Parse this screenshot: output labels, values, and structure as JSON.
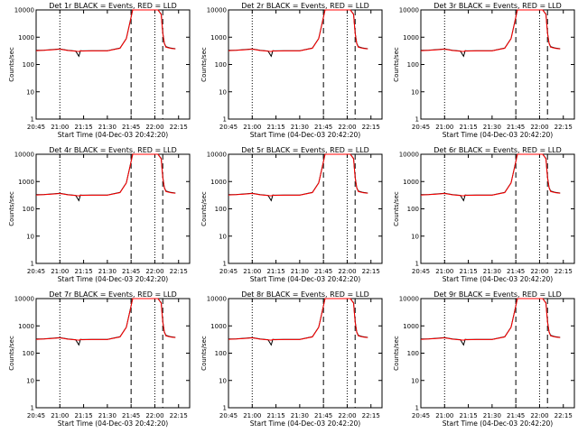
{
  "figure": {
    "background": "#ffffff",
    "colors": {
      "events": "#000000",
      "lld": "#ff0000"
    }
  },
  "chart_data": [
    {
      "type": "line",
      "title": "Det 1r BLACK = Events, RED = LLD",
      "xlabel": "Start Time (04-Dec-03 20:42:20)",
      "ylabel": "Counts/sec",
      "yscale": "log",
      "ylim": [
        1,
        10000
      ],
      "xlim": [
        "20:45",
        "22:22"
      ],
      "x_ticks": [
        "20:45",
        "21:00",
        "21:15",
        "21:30",
        "21:45",
        "22:00",
        "22:15"
      ],
      "y_ticks": [
        "1",
        "10",
        "100",
        "1000",
        "10000"
      ],
      "x": [
        "20:45",
        "20:50",
        "20:55",
        "21:00",
        "21:05",
        "21:10",
        "21:12",
        "21:13",
        "21:14",
        "21:20",
        "21:30",
        "21:38",
        "21:42",
        "21:44",
        "21:46",
        "21:48",
        "22:02",
        "22:04",
        "22:05",
        "22:06",
        "22:07",
        "22:10",
        "22:13"
      ],
      "series": [
        {
          "values": [
            330,
            335,
            350,
            370,
            330,
            310,
            200,
            320,
            315,
            320,
            320,
            400,
            900,
            3000,
            10000,
            10000,
            10000,
            7000,
            1500,
            600,
            450,
            400,
            380
          ]
        },
        {
          "values": [
            320,
            330,
            345,
            365,
            325,
            305,
            300,
            315,
            310,
            315,
            315,
            395,
            880,
            2900,
            10000,
            10000,
            10000,
            6800,
            1400,
            580,
            430,
            390,
            370
          ]
        }
      ],
      "markers": {
        "dotted": [
          "21:00",
          "22:00"
        ],
        "dashed": [
          "21:45",
          "22:05"
        ]
      }
    },
    {
      "type": "line",
      "title": "Det 2r BLACK = Events, RED = LLD",
      "xlabel": "Start Time (04-Dec-03 20:42:20)",
      "ylabel": "Counts/sec",
      "yscale": "log",
      "ylim": [
        1,
        10000
      ],
      "xlim": [
        "20:45",
        "22:22"
      ],
      "x_ticks": [
        "20:45",
        "21:00",
        "21:15",
        "21:30",
        "21:45",
        "22:00",
        "22:15"
      ],
      "y_ticks": [
        "1",
        "10",
        "100",
        "1000",
        "10000"
      ],
      "x": [
        "20:45",
        "20:50",
        "20:55",
        "21:00",
        "21:05",
        "21:10",
        "21:12",
        "21:13",
        "21:14",
        "21:20",
        "21:30",
        "21:38",
        "21:42",
        "21:44",
        "21:46",
        "21:48",
        "22:02",
        "22:04",
        "22:05",
        "22:06",
        "22:07",
        "22:10",
        "22:13"
      ],
      "series": [
        {
          "values": [
            330,
            335,
            350,
            370,
            330,
            310,
            200,
            320,
            315,
            320,
            320,
            400,
            900,
            3000,
            10000,
            10000,
            10000,
            7000,
            1500,
            600,
            450,
            400,
            380
          ]
        },
        {
          "values": [
            320,
            330,
            345,
            365,
            325,
            305,
            300,
            315,
            310,
            315,
            315,
            395,
            880,
            2900,
            10000,
            10000,
            10000,
            6800,
            1400,
            580,
            430,
            390,
            370
          ]
        }
      ],
      "markers": {
        "dotted": [
          "21:00",
          "22:00"
        ],
        "dashed": [
          "21:45",
          "22:05"
        ]
      }
    },
    {
      "type": "line",
      "title": "Det 3r BLACK = Events, RED = LLD",
      "xlabel": "Start Time (04-Dec-03 20:42:20)",
      "ylabel": "Counts/sec",
      "yscale": "log",
      "ylim": [
        1,
        10000
      ],
      "xlim": [
        "20:45",
        "22:22"
      ],
      "x_ticks": [
        "20:45",
        "21:00",
        "21:15",
        "21:30",
        "21:45",
        "22:00",
        "22:15"
      ],
      "y_ticks": [
        "1",
        "10",
        "100",
        "1000",
        "10000"
      ],
      "x": [
        "20:45",
        "20:50",
        "20:55",
        "21:00",
        "21:05",
        "21:10",
        "21:12",
        "21:13",
        "21:14",
        "21:20",
        "21:30",
        "21:38",
        "21:42",
        "21:44",
        "21:46",
        "21:48",
        "22:02",
        "22:04",
        "22:05",
        "22:06",
        "22:07",
        "22:10",
        "22:13"
      ],
      "series": [
        {
          "values": [
            330,
            335,
            350,
            370,
            330,
            310,
            200,
            320,
            315,
            320,
            320,
            400,
            900,
            3000,
            10000,
            10000,
            10000,
            7000,
            1500,
            600,
            450,
            400,
            380
          ]
        },
        {
          "values": [
            320,
            330,
            345,
            365,
            325,
            305,
            300,
            315,
            310,
            315,
            315,
            395,
            880,
            2900,
            10000,
            10000,
            10000,
            6800,
            1400,
            580,
            430,
            390,
            370
          ]
        }
      ],
      "markers": {
        "dotted": [
          "21:00",
          "22:00"
        ],
        "dashed": [
          "21:45",
          "22:05"
        ]
      }
    },
    {
      "type": "line",
      "title": "Det 4r BLACK = Events, RED = LLD",
      "xlabel": "Start Time (04-Dec-03 20:42:20)",
      "ylabel": "Counts/sec",
      "yscale": "log",
      "ylim": [
        1,
        10000
      ],
      "xlim": [
        "20:45",
        "22:22"
      ],
      "x_ticks": [
        "20:45",
        "21:00",
        "21:15",
        "21:30",
        "21:45",
        "22:00",
        "22:15"
      ],
      "y_ticks": [
        "1",
        "10",
        "100",
        "1000",
        "10000"
      ],
      "x": [
        "20:45",
        "20:50",
        "20:55",
        "21:00",
        "21:05",
        "21:10",
        "21:12",
        "21:13",
        "21:14",
        "21:20",
        "21:30",
        "21:38",
        "21:42",
        "21:44",
        "21:46",
        "21:48",
        "22:02",
        "22:04",
        "22:05",
        "22:06",
        "22:07",
        "22:10",
        "22:13"
      ],
      "series": [
        {
          "values": [
            330,
            335,
            350,
            370,
            330,
            310,
            200,
            320,
            315,
            320,
            320,
            400,
            900,
            3000,
            10000,
            10000,
            10000,
            7000,
            1500,
            600,
            450,
            400,
            380
          ]
        },
        {
          "values": [
            320,
            330,
            345,
            365,
            325,
            305,
            300,
            315,
            310,
            315,
            315,
            395,
            880,
            2900,
            10000,
            10000,
            10000,
            6800,
            1400,
            580,
            430,
            390,
            370
          ]
        }
      ],
      "markers": {
        "dotted": [
          "21:00",
          "22:00"
        ],
        "dashed": [
          "21:45",
          "22:05"
        ]
      }
    },
    {
      "type": "line",
      "title": "Det 5r BLACK = Events, RED = LLD",
      "xlabel": "Start Time (04-Dec-03 20:42:20)",
      "ylabel": "Counts/sec",
      "yscale": "log",
      "ylim": [
        1,
        10000
      ],
      "xlim": [
        "20:45",
        "22:22"
      ],
      "x_ticks": [
        "20:45",
        "21:00",
        "21:15",
        "21:30",
        "21:45",
        "22:00",
        "22:15"
      ],
      "y_ticks": [
        "1",
        "10",
        "100",
        "1000",
        "10000"
      ],
      "x": [
        "20:45",
        "20:50",
        "20:55",
        "21:00",
        "21:05",
        "21:10",
        "21:12",
        "21:13",
        "21:14",
        "21:20",
        "21:30",
        "21:38",
        "21:42",
        "21:44",
        "21:46",
        "21:48",
        "22:02",
        "22:04",
        "22:05",
        "22:06",
        "22:07",
        "22:10",
        "22:13"
      ],
      "series": [
        {
          "values": [
            330,
            335,
            350,
            370,
            330,
            310,
            200,
            320,
            315,
            320,
            320,
            400,
            900,
            3000,
            10000,
            10000,
            10000,
            7000,
            1500,
            600,
            450,
            400,
            380
          ]
        },
        {
          "values": [
            320,
            330,
            345,
            365,
            325,
            305,
            300,
            315,
            310,
            315,
            315,
            395,
            880,
            2900,
            10000,
            10000,
            10000,
            6800,
            1400,
            580,
            430,
            390,
            370
          ]
        }
      ],
      "markers": {
        "dotted": [
          "21:00",
          "22:00"
        ],
        "dashed": [
          "21:45",
          "22:05"
        ]
      }
    },
    {
      "type": "line",
      "title": "Det 6r BLACK = Events, RED = LLD",
      "xlabel": "Start Time (04-Dec-03 20:42:20)",
      "ylabel": "Counts/sec",
      "yscale": "log",
      "ylim": [
        1,
        10000
      ],
      "xlim": [
        "20:45",
        "22:22"
      ],
      "x_ticks": [
        "20:45",
        "21:00",
        "21:15",
        "21:30",
        "21:45",
        "22:00",
        "22:15"
      ],
      "y_ticks": [
        "1",
        "10",
        "100",
        "1000",
        "10000"
      ],
      "x": [
        "20:45",
        "20:50",
        "20:55",
        "21:00",
        "21:05",
        "21:10",
        "21:12",
        "21:13",
        "21:14",
        "21:20",
        "21:30",
        "21:38",
        "21:42",
        "21:44",
        "21:46",
        "21:48",
        "22:02",
        "22:04",
        "22:05",
        "22:06",
        "22:07",
        "22:10",
        "22:13"
      ],
      "series": [
        {
          "values": [
            330,
            335,
            350,
            370,
            330,
            310,
            200,
            320,
            315,
            320,
            320,
            400,
            900,
            3000,
            10000,
            10000,
            10000,
            7000,
            1500,
            600,
            450,
            400,
            380
          ]
        },
        {
          "values": [
            320,
            330,
            345,
            365,
            325,
            305,
            300,
            315,
            310,
            315,
            315,
            395,
            880,
            2900,
            10000,
            10000,
            10000,
            6800,
            1400,
            580,
            430,
            390,
            370
          ]
        }
      ],
      "markers": {
        "dotted": [
          "21:00",
          "22:00"
        ],
        "dashed": [
          "21:45",
          "22:05"
        ]
      }
    },
    {
      "type": "line",
      "title": "Det 7r BLACK = Events, RED = LLD",
      "xlabel": "Start Time (04-Dec-03 20:42:20)",
      "ylabel": "Counts/sec",
      "yscale": "log",
      "ylim": [
        1,
        10000
      ],
      "xlim": [
        "20:45",
        "22:22"
      ],
      "x_ticks": [
        "20:45",
        "21:00",
        "21:15",
        "21:30",
        "21:45",
        "22:00",
        "22:15"
      ],
      "y_ticks": [
        "1",
        "10",
        "100",
        "1000",
        "10000"
      ],
      "x": [
        "20:45",
        "20:50",
        "20:55",
        "21:00",
        "21:05",
        "21:10",
        "21:12",
        "21:13",
        "21:14",
        "21:20",
        "21:30",
        "21:38",
        "21:42",
        "21:44",
        "21:46",
        "21:48",
        "22:02",
        "22:04",
        "22:05",
        "22:06",
        "22:07",
        "22:10",
        "22:13"
      ],
      "series": [
        {
          "values": [
            330,
            335,
            350,
            370,
            330,
            310,
            200,
            320,
            315,
            320,
            320,
            400,
            900,
            3000,
            10000,
            10000,
            10000,
            7000,
            1500,
            600,
            450,
            400,
            380
          ]
        },
        {
          "values": [
            320,
            330,
            345,
            365,
            325,
            305,
            300,
            315,
            310,
            315,
            315,
            395,
            880,
            2900,
            10000,
            10000,
            10000,
            6800,
            1400,
            580,
            430,
            390,
            370
          ]
        }
      ],
      "markers": {
        "dotted": [
          "21:00",
          "22:00"
        ],
        "dashed": [
          "21:45",
          "22:05"
        ]
      }
    },
    {
      "type": "line",
      "title": "Det 8r BLACK = Events, RED = LLD",
      "xlabel": "Start Time (04-Dec-03 20:42:20)",
      "ylabel": "Counts/sec",
      "yscale": "log",
      "ylim": [
        1,
        10000
      ],
      "xlim": [
        "20:45",
        "22:22"
      ],
      "x_ticks": [
        "20:45",
        "21:00",
        "21:15",
        "21:30",
        "21:45",
        "22:00",
        "22:15"
      ],
      "y_ticks": [
        "1",
        "10",
        "100",
        "1000",
        "10000"
      ],
      "x": [
        "20:45",
        "20:50",
        "20:55",
        "21:00",
        "21:05",
        "21:10",
        "21:12",
        "21:13",
        "21:14",
        "21:20",
        "21:30",
        "21:38",
        "21:42",
        "21:44",
        "21:46",
        "21:48",
        "22:02",
        "22:04",
        "22:05",
        "22:06",
        "22:07",
        "22:10",
        "22:13"
      ],
      "series": [
        {
          "values": [
            330,
            335,
            350,
            370,
            330,
            310,
            200,
            320,
            315,
            320,
            320,
            400,
            900,
            3000,
            10000,
            10000,
            10000,
            7000,
            1500,
            600,
            450,
            400,
            380
          ]
        },
        {
          "values": [
            320,
            330,
            345,
            365,
            325,
            305,
            300,
            315,
            310,
            315,
            315,
            395,
            880,
            2900,
            10000,
            10000,
            10000,
            6800,
            1400,
            580,
            430,
            390,
            370
          ]
        }
      ],
      "markers": {
        "dotted": [
          "21:00",
          "22:00"
        ],
        "dashed": [
          "21:45",
          "22:05"
        ]
      }
    },
    {
      "type": "line",
      "title": "Det 9r BLACK = Events, RED = LLD",
      "xlabel": "Start Time (04-Dec-03 20:42:20)",
      "ylabel": "Counts/sec",
      "yscale": "log",
      "ylim": [
        1,
        10000
      ],
      "xlim": [
        "20:45",
        "22:22"
      ],
      "x_ticks": [
        "20:45",
        "21:00",
        "21:15",
        "21:30",
        "21:45",
        "22:00",
        "22:15"
      ],
      "y_ticks": [
        "1",
        "10",
        "100",
        "1000",
        "10000"
      ],
      "x": [
        "20:45",
        "20:50",
        "20:55",
        "21:00",
        "21:05",
        "21:10",
        "21:12",
        "21:13",
        "21:14",
        "21:20",
        "21:30",
        "21:38",
        "21:42",
        "21:44",
        "21:46",
        "21:48",
        "22:02",
        "22:04",
        "22:05",
        "22:06",
        "22:07",
        "22:10",
        "22:13"
      ],
      "series": [
        {
          "values": [
            330,
            335,
            350,
            370,
            330,
            310,
            200,
            320,
            315,
            320,
            320,
            400,
            900,
            3000,
            10000,
            10000,
            10000,
            7000,
            1500,
            600,
            450,
            400,
            380
          ]
        },
        {
          "values": [
            320,
            330,
            345,
            365,
            325,
            305,
            300,
            315,
            310,
            315,
            315,
            395,
            880,
            2900,
            10000,
            10000,
            10000,
            6800,
            1400,
            580,
            430,
            390,
            370
          ]
        }
      ],
      "markers": {
        "dotted": [
          "21:00",
          "22:00"
        ],
        "dashed": [
          "21:45",
          "22:05"
        ]
      }
    }
  ]
}
